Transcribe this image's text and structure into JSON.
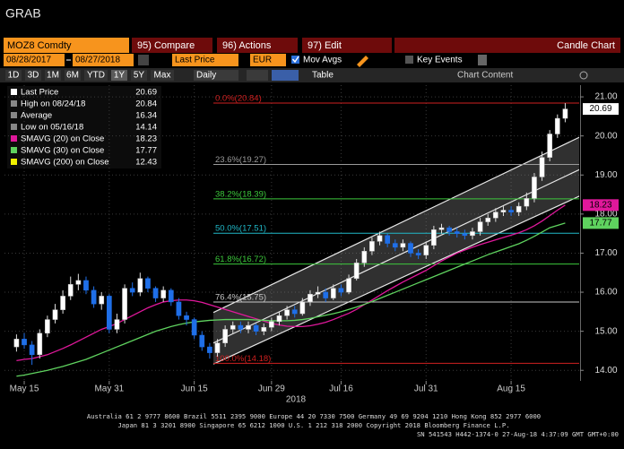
{
  "ui": {
    "title": "GRAB",
    "ticker": "MOZ8 Comdty",
    "buttons": [
      "95) Compare",
      "96) Actions",
      "97) Edit"
    ],
    "chart_type": "Candle Chart",
    "start_date": "08/28/2017",
    "end_date": "08/27/2018",
    "field": "Last Price",
    "currency": "EUR",
    "mov_avgs": "Mov Avgs",
    "key_events": "Key Events",
    "periods": [
      "1D",
      "3D",
      "1M",
      "6M",
      "YTD",
      "1Y",
      "5Y",
      "Max"
    ],
    "frequency": "Daily",
    "table": "Table",
    "chart_content": "Chart Content",
    "footer": [
      "Australia 61 2 9777 8600 Brazil 5511 2395 9000 Europe 44 20 7330 7500 Germany 49 69 9204 1210 Hong Kong 852 2977 6000",
      "Japan 81 3 3201 8900          Singapore 65 6212 1000          U.S. 1 212 318 2000          Copyright 2018 Bloomberg Finance L.P.",
      "SN 541543 H442-1374-0 27-Aug-18  4:37:09 GMT  GMT+0:00"
    ]
  },
  "chart_data": {
    "type": "candlestick",
    "xlabel": "2018",
    "categories": [
      null,
      "May 15",
      null,
      null,
      null,
      null,
      null,
      null,
      null,
      null,
      null,
      null,
      "May 31",
      null,
      null,
      null,
      null,
      null,
      null,
      null,
      null,
      null,
      null,
      "Jun 15",
      null,
      null,
      null,
      null,
      null,
      null,
      null,
      null,
      null,
      "Jun 29",
      null,
      null,
      null,
      null,
      null,
      null,
      null,
      null,
      "Jul 16",
      null,
      null,
      null,
      null,
      null,
      null,
      null,
      null,
      null,
      null,
      "Jul 31",
      null,
      null,
      null,
      null,
      null,
      null,
      null,
      null,
      null,
      null,
      "Aug 15",
      null,
      null,
      null,
      null,
      null,
      null,
      null
    ],
    "open": [
      14.6,
      14.8,
      14.65,
      14.4,
      14.95,
      15.3,
      15.55,
      15.9,
      16.2,
      16.3,
      16.05,
      15.7,
      15.9,
      15.05,
      15.3,
      16.1,
      16.0,
      16.35,
      16.1,
      15.85,
      16.05,
      15.75,
      15.4,
      15.3,
      14.9,
      14.6,
      14.45,
      14.7,
      15.05,
      15.15,
      15.05,
      15.15,
      15.0,
      15.1,
      15.25,
      15.4,
      15.55,
      15.45,
      15.75,
      15.95,
      16.0,
      15.85,
      16.1,
      16.0,
      16.35,
      16.75,
      17.05,
      17.3,
      17.45,
      17.25,
      17.15,
      17.25,
      17.0,
      16.95,
      17.2,
      17.6,
      17.65,
      17.55,
      17.5,
      17.45,
      17.55,
      17.8,
      17.9,
      18.05,
      18.1,
      18.05,
      18.2,
      18.4,
      18.95,
      19.45,
      20.05,
      20.45
    ],
    "high": [
      14.92,
      14.95,
      14.75,
      15.05,
      15.4,
      15.7,
      16.05,
      16.4,
      16.47,
      16.4,
      16.15,
      16.0,
      15.95,
      15.45,
      16.2,
      16.25,
      16.5,
      16.4,
      16.15,
      16.15,
      16.1,
      15.85,
      15.5,
      15.35,
      15.0,
      14.7,
      14.8,
      15.15,
      15.25,
      15.25,
      15.25,
      15.2,
      15.2,
      15.35,
      15.5,
      15.65,
      15.65,
      15.85,
      16.05,
      16.15,
      16.1,
      16.2,
      16.2,
      16.45,
      16.85,
      17.15,
      17.4,
      17.55,
      17.5,
      17.35,
      17.35,
      17.3,
      17.1,
      17.3,
      17.7,
      17.75,
      17.7,
      17.65,
      17.6,
      17.65,
      17.9,
      18.0,
      18.15,
      18.2,
      18.2,
      18.3,
      18.55,
      19.05,
      19.6,
      20.15,
      20.55,
      20.84
    ],
    "low": [
      14.48,
      14.55,
      14.14,
      14.3,
      14.85,
      15.2,
      15.45,
      15.8,
      16.05,
      15.95,
      15.6,
      15.55,
      14.95,
      14.95,
      15.2,
      15.9,
      15.9,
      16.0,
      15.75,
      15.75,
      15.65,
      15.3,
      15.15,
      14.8,
      14.5,
      14.3,
      14.35,
      14.6,
      14.95,
      14.95,
      14.95,
      14.9,
      14.9,
      15.0,
      15.15,
      15.3,
      15.35,
      15.4,
      15.65,
      15.85,
      15.75,
      15.8,
      15.9,
      15.95,
      16.3,
      16.65,
      16.95,
      17.2,
      17.15,
      17.05,
      17.05,
      16.9,
      16.85,
      16.85,
      17.1,
      17.5,
      17.45,
      17.4,
      17.35,
      17.35,
      17.45,
      17.7,
      17.8,
      17.95,
      17.95,
      17.95,
      18.1,
      18.3,
      18.85,
      19.35,
      19.95,
      20.35
    ],
    "close": [
      14.8,
      14.65,
      14.4,
      14.95,
      15.3,
      15.55,
      15.9,
      16.2,
      16.3,
      16.05,
      15.7,
      15.9,
      15.05,
      15.3,
      16.1,
      16.0,
      16.35,
      16.1,
      15.85,
      16.05,
      15.75,
      15.4,
      15.3,
      14.9,
      14.6,
      14.45,
      14.7,
      15.05,
      15.15,
      15.05,
      15.15,
      15.0,
      15.1,
      15.25,
      15.4,
      15.55,
      15.45,
      15.75,
      15.95,
      16.0,
      15.85,
      16.1,
      16.0,
      16.35,
      16.75,
      17.05,
      17.3,
      17.45,
      17.25,
      17.15,
      17.25,
      17.0,
      16.95,
      17.2,
      17.6,
      17.65,
      17.55,
      17.5,
      17.45,
      17.55,
      17.8,
      17.9,
      18.05,
      18.1,
      18.05,
      18.2,
      18.4,
      18.95,
      19.45,
      20.05,
      20.45,
      20.69
    ],
    "up_color": "#ffffff",
    "down_color": "#1f6fe8",
    "series": [
      {
        "name": "SMAVG (20) on Close",
        "color": "#e0189b",
        "last": 18.23,
        "values": [
          14.25,
          14.28,
          14.3,
          14.35,
          14.4,
          14.48,
          14.56,
          14.65,
          14.75,
          14.85,
          14.95,
          15.05,
          15.12,
          15.2,
          15.3,
          15.4,
          15.5,
          15.6,
          15.68,
          15.75,
          15.78,
          15.8,
          15.8,
          15.78,
          15.74,
          15.68,
          15.62,
          15.56,
          15.5,
          15.44,
          15.38,
          15.32,
          15.26,
          15.2,
          15.16,
          15.13,
          15.12,
          15.12,
          15.14,
          15.18,
          15.23,
          15.3,
          15.38,
          15.46,
          15.56,
          15.68,
          15.8,
          15.92,
          16.04,
          16.15,
          16.26,
          16.36,
          16.46,
          16.56,
          16.68,
          16.8,
          16.9,
          17.0,
          17.08,
          17.15,
          17.22,
          17.28,
          17.34,
          17.4,
          17.46,
          17.52,
          17.6,
          17.7,
          17.82,
          17.96,
          18.1,
          18.23
        ]
      },
      {
        "name": "SMAVG (30) on Close",
        "color": "#5fd35f",
        "last": 17.77,
        "values": [
          13.85,
          13.88,
          13.92,
          13.96,
          14.0,
          14.05,
          14.1,
          14.16,
          14.22,
          14.28,
          14.36,
          14.44,
          14.52,
          14.6,
          14.68,
          14.76,
          14.84,
          14.92,
          15.0,
          15.06,
          15.12,
          15.17,
          15.21,
          15.24,
          15.26,
          15.28,
          15.29,
          15.3,
          15.3,
          15.3,
          15.3,
          15.29,
          15.28,
          15.27,
          15.27,
          15.27,
          15.28,
          15.3,
          15.33,
          15.37,
          15.41,
          15.45,
          15.5,
          15.56,
          15.62,
          15.69,
          15.76,
          15.84,
          15.92,
          16.0,
          16.08,
          16.16,
          16.24,
          16.32,
          16.4,
          16.48,
          16.56,
          16.64,
          16.72,
          16.8,
          16.88,
          16.96,
          17.03,
          17.1,
          17.17,
          17.24,
          17.33,
          17.43,
          17.54,
          17.65,
          17.71,
          17.77
        ]
      },
      {
        "name": "SMAVG (200) on Close",
        "color": "#f0f000",
        "last": 12.43
      }
    ],
    "legend": [
      {
        "label": "Last Price",
        "value": 20.69
      },
      {
        "label": "High on 08/24/18",
        "value": 20.84
      },
      {
        "label": "Average",
        "value": 16.34
      },
      {
        "label": "Low on 05/16/18",
        "value": 14.14
      }
    ],
    "fib_levels": [
      {
        "label": "0.0%(20.84)",
        "value": 20.84,
        "color": "#d02020"
      },
      {
        "label": "23.6%(19.27)",
        "value": 19.27,
        "color": "#9a9a9a"
      },
      {
        "label": "38.2%(18.39)",
        "value": 18.39,
        "color": "#3cc83c"
      },
      {
        "label": "50.0%(17.51)",
        "value": 17.51,
        "color": "#20b8c8"
      },
      {
        "label": "61.8%(16.72)",
        "value": 16.72,
        "color": "#3cc83c"
      },
      {
        "label": "76.4%(15.75)",
        "value": 15.75,
        "color": "#c8c8c8"
      },
      {
        "label": "100.0%(14.18)",
        "value": 14.18,
        "color": "#d02020"
      }
    ],
    "channel": {
      "upper": [
        15.48,
        20.03
      ],
      "middle": [
        14.7,
        19.2
      ],
      "lower": [
        14.16,
        18.52
      ]
    },
    "ylim": [
      13.73,
      21.3
    ],
    "yticks": [
      {
        "value": 21,
        "label": "21.00"
      },
      {
        "value": 20,
        "label": "20.00"
      },
      {
        "value": 19,
        "label": "19.00"
      },
      {
        "value": 18,
        "label": "18.00"
      },
      {
        "value": 17,
        "label": "17.00"
      },
      {
        "value": 16,
        "label": "16.00"
      },
      {
        "value": 15,
        "label": "15.00"
      },
      {
        "value": 14,
        "label": "14.00"
      }
    ],
    "grid": true
  }
}
